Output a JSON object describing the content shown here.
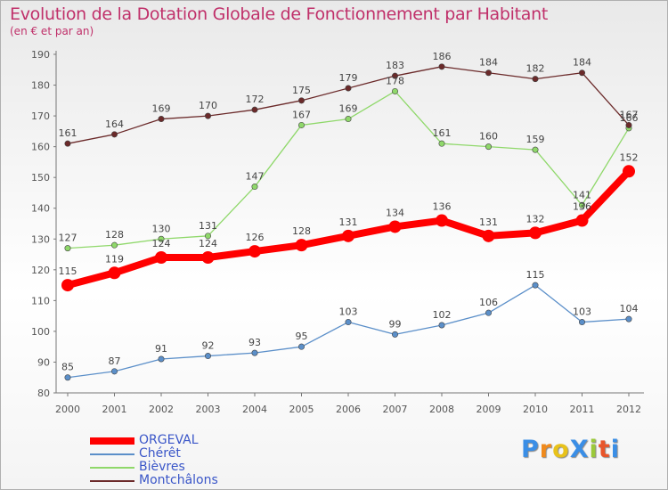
{
  "header": {
    "title": "Evolution de la Dotation Globale de Fonctionnement par Habitant",
    "subtitle": "(en € et par an)"
  },
  "logo": {
    "text": "ProXiti",
    "letters": [
      "P",
      "r",
      "o",
      "X",
      "i",
      "t",
      "i"
    ],
    "colors": [
      "#3a8ee6",
      "#f08a1c",
      "#e8c21a",
      "#3a8ee6",
      "#9bc93a",
      "#e8552a",
      "#3a8ee6"
    ]
  },
  "chart_data": {
    "type": "line",
    "title": "Evolution de la Dotation Globale de Fonctionnement par Habitant",
    "subtitle": "(en € et par an)",
    "xlabel": "",
    "ylabel": "",
    "x": [
      "2000",
      "2001",
      "2002",
      "2003",
      "2004",
      "2005",
      "2006",
      "2007",
      "2008",
      "2009",
      "2010",
      "2011",
      "2012"
    ],
    "ylim": [
      80,
      190
    ],
    "yticks": [
      80,
      90,
      100,
      110,
      120,
      130,
      140,
      150,
      160,
      170,
      180,
      190
    ],
    "grid": false,
    "legend_position": "bottom-left",
    "series": [
      {
        "name": "ORGEVAL",
        "values": [
          115,
          119,
          124,
          124,
          126,
          128,
          131,
          134,
          136,
          131,
          132,
          136,
          152
        ],
        "color": "#ff0000",
        "emphasis": true
      },
      {
        "name": "Chérêt",
        "values": [
          85,
          87,
          91,
          92,
          93,
          95,
          103,
          99,
          102,
          106,
          115,
          103,
          104
        ],
        "color": "#5b8fc9"
      },
      {
        "name": "Bièvres",
        "values": [
          127,
          128,
          130,
          131,
          147,
          167,
          169,
          178,
          161,
          160,
          159,
          141,
          166
        ],
        "color": "#8fd86a"
      },
      {
        "name": "Montchâlons",
        "values": [
          161,
          164,
          169,
          170,
          172,
          175,
          179,
          183,
          186,
          184,
          182,
          184,
          167
        ],
        "color": "#6b2a2a"
      }
    ]
  }
}
